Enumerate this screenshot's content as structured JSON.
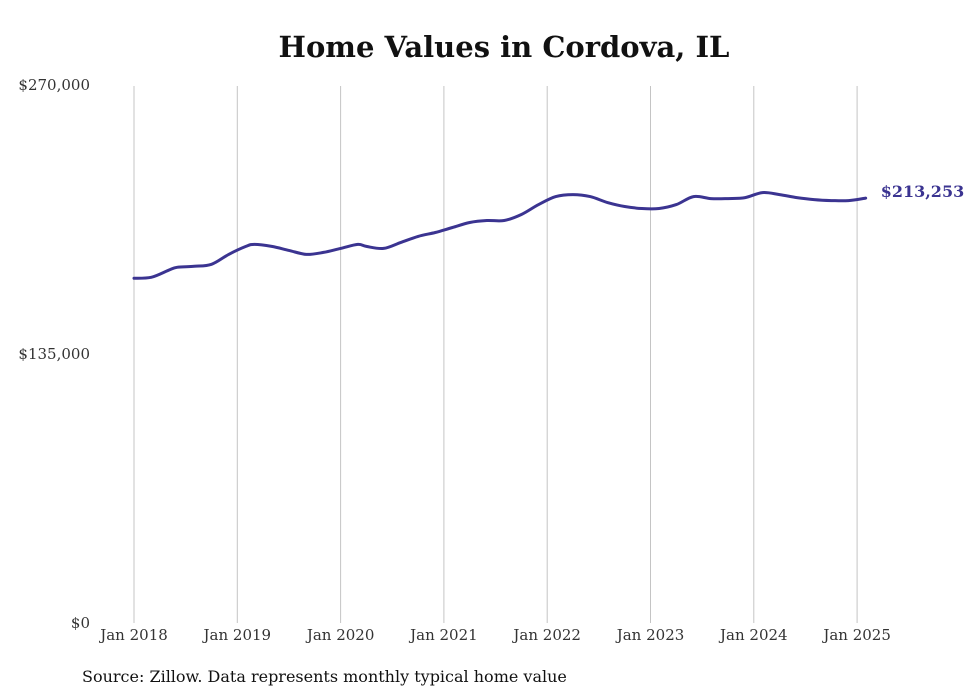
{
  "chart_data": {
    "type": "line",
    "title": "Home Values in Cordova, IL",
    "xlabel": "",
    "ylabel": "",
    "ylim": [
      0,
      270000
    ],
    "y_ticks": [
      "$0",
      "$135,000",
      "$270,000"
    ],
    "y_tick_values": [
      0,
      135000,
      270000
    ],
    "x_ticks": [
      "Jan 2018",
      "Jan 2019",
      "Jan 2020",
      "Jan 2021",
      "Jan 2022",
      "Jan 2023",
      "Jan 2024",
      "Jan 2025"
    ],
    "x_tick_values": [
      "2018-01",
      "2019-01",
      "2020-01",
      "2021-01",
      "2022-01",
      "2023-01",
      "2024-01",
      "2025-01"
    ],
    "grid": "vertical",
    "line_color": "#3b3491",
    "series": [
      {
        "end_label": "$213,253",
        "x": [
          "2018-01",
          "2018-03",
          "2018-05",
          "2018-06",
          "2018-08",
          "2018-10",
          "2018-12",
          "2019-02",
          "2019-03",
          "2019-05",
          "2019-07",
          "2019-09",
          "2019-11",
          "2020-01",
          "2020-03",
          "2020-04",
          "2020-06",
          "2020-08",
          "2020-10",
          "2020-12",
          "2021-02",
          "2021-04",
          "2021-06",
          "2021-08",
          "2021-10",
          "2021-12",
          "2022-02",
          "2022-04",
          "2022-06",
          "2022-08",
          "2022-10",
          "2022-12",
          "2023-02",
          "2023-04",
          "2023-06",
          "2023-08",
          "2023-10",
          "2023-12",
          "2024-02",
          "2024-04",
          "2024-06",
          "2024-08",
          "2024-10",
          "2024-12",
          "2025-02"
        ],
        "values": [
          173000,
          173500,
          177000,
          178500,
          179000,
          180000,
          185000,
          189000,
          190000,
          189000,
          187000,
          185000,
          186000,
          188000,
          190000,
          189000,
          188000,
          191000,
          194000,
          196000,
          198500,
          201000,
          202000,
          202000,
          205000,
          210000,
          214000,
          215000,
          214000,
          211000,
          209000,
          208000,
          208000,
          210000,
          214000,
          213000,
          213000,
          213500,
          216000,
          215000,
          213500,
          212500,
          212000,
          212000,
          213253
        ]
      }
    ]
  },
  "source_note": "Source: Zillow. Data represents monthly typical home value"
}
